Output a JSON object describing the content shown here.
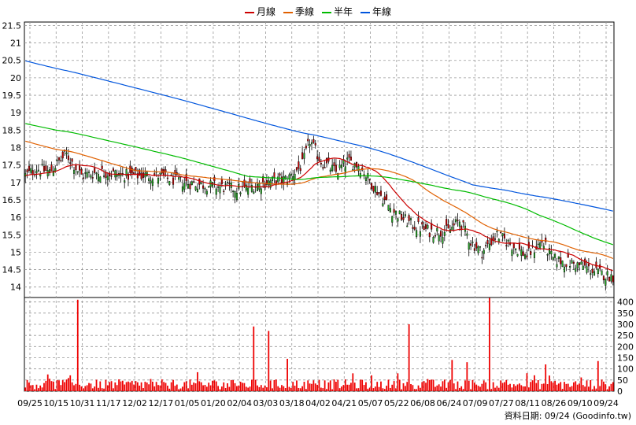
{
  "legend": {
    "items": [
      {
        "label": "月線",
        "color": "#cc0000"
      },
      {
        "label": "季線",
        "color": "#e06000"
      },
      {
        "label": "半年",
        "color": "#00bb00"
      },
      {
        "label": "年線",
        "color": "#0055dd"
      }
    ]
  },
  "footer": {
    "label": "資料日期: 09/24  (Goodinfo.tw)"
  },
  "chart_data": {
    "type": "candlestick+volume",
    "x_ticks": [
      "09/25",
      "10/15",
      "10/31",
      "11/17",
      "12/02",
      "12/17",
      "01/05",
      "01/20",
      "02/04",
      "03/03",
      "03/18",
      "04/02",
      "04/21",
      "05/07",
      "05/22",
      "06/08",
      "06/24",
      "07/09",
      "07/27",
      "08/11",
      "08/26",
      "09/10",
      "09/24"
    ],
    "price_axis": {
      "ticks": [
        14,
        14.5,
        15,
        15.5,
        16,
        16.5,
        17,
        17.5,
        18,
        18.5,
        19,
        19.5,
        20,
        20.5,
        21,
        21.5
      ],
      "range": [
        13.7,
        21.6
      ]
    },
    "volume_axis": {
      "ticks": [
        0,
        50,
        100,
        150,
        200,
        250,
        300,
        350,
        400
      ],
      "range": [
        0,
        420
      ]
    },
    "close_anchors": [
      [
        0,
        17.2
      ],
      [
        6,
        17.4
      ],
      [
        13,
        17.3
      ],
      [
        18,
        17.6
      ],
      [
        22,
        17.8
      ],
      [
        30,
        17.2
      ],
      [
        40,
        17.3
      ],
      [
        55,
        17.2
      ],
      [
        70,
        17.2
      ],
      [
        85,
        17.0
      ],
      [
        100,
        16.9
      ],
      [
        115,
        16.8
      ],
      [
        128,
        17.0
      ],
      [
        140,
        17.1
      ],
      [
        148,
        17.5
      ],
      [
        152,
        18.2
      ],
      [
        158,
        17.6
      ],
      [
        166,
        17.3
      ],
      [
        172,
        17.6
      ],
      [
        178,
        17.5
      ],
      [
        186,
        16.9
      ],
      [
        196,
        16.2
      ],
      [
        206,
        15.8
      ],
      [
        216,
        15.6
      ],
      [
        226,
        15.6
      ],
      [
        232,
        15.9
      ],
      [
        238,
        15.3
      ],
      [
        244,
        15.0
      ],
      [
        252,
        15.5
      ],
      [
        260,
        15.2
      ],
      [
        268,
        14.9
      ],
      [
        276,
        15.3
      ],
      [
        282,
        14.8
      ],
      [
        290,
        14.7
      ],
      [
        298,
        14.6
      ],
      [
        306,
        14.4
      ],
      [
        314,
        14.3
      ]
    ],
    "volume_spikes": [
      [
        12,
        75
      ],
      [
        28,
        410
      ],
      [
        78,
        40
      ],
      [
        110,
        50
      ],
      [
        122,
        290
      ],
      [
        130,
        270
      ],
      [
        140,
        145
      ],
      [
        175,
        80
      ],
      [
        199,
        80
      ],
      [
        205,
        300
      ],
      [
        228,
        140
      ],
      [
        236,
        130
      ],
      [
        248,
        418
      ],
      [
        257,
        50
      ],
      [
        278,
        120
      ],
      [
        306,
        135
      ]
    ]
  }
}
